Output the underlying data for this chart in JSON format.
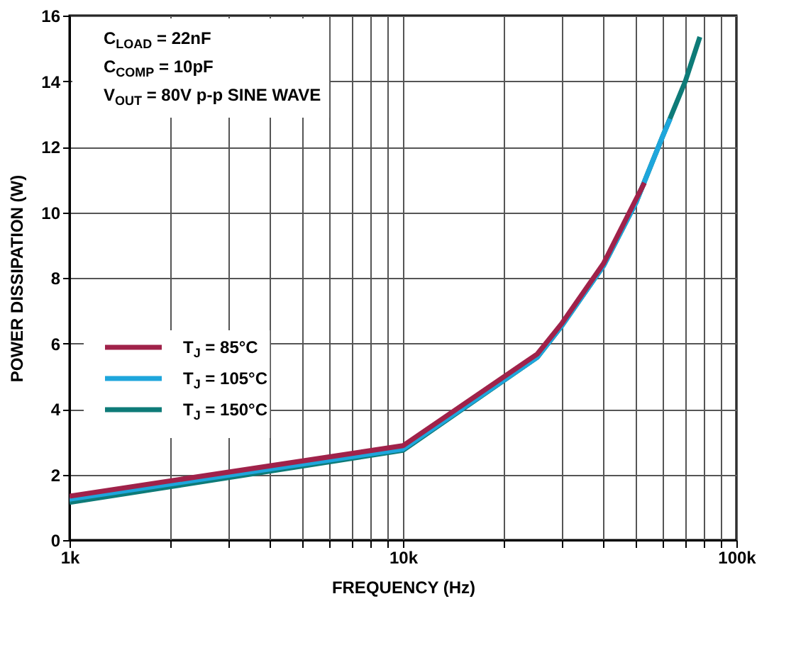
{
  "chart_data": {
    "type": "line",
    "xlabel": "FREQUENCY (Hz)",
    "ylabel": "POWER DISSIPATION (W)",
    "log": "x",
    "grid": true,
    "legend": "left",
    "marker": "none",
    "line_style": "solid",
    "xlim": [
      1000,
      100000
    ],
    "xticks": [
      {
        "value": 1000,
        "label": "1k"
      },
      {
        "value": 2000,
        "label": null
      },
      {
        "value": 3000,
        "label": null
      },
      {
        "value": 4000,
        "label": null
      },
      {
        "value": 5000,
        "label": null
      },
      {
        "value": 6000,
        "label": null
      },
      {
        "value": 7000,
        "label": null
      },
      {
        "value": 8000,
        "label": null
      },
      {
        "value": 9000,
        "label": null
      },
      {
        "value": 10000,
        "label": "10k"
      },
      {
        "value": 20000,
        "label": null
      },
      {
        "value": 30000,
        "label": null
      },
      {
        "value": 40000,
        "label": null
      },
      {
        "value": 50000,
        "label": null
      },
      {
        "value": 60000,
        "label": null
      },
      {
        "value": 70000,
        "label": null
      },
      {
        "value": 80000,
        "label": null
      },
      {
        "value": 90000,
        "label": null
      },
      {
        "value": 100000,
        "label": "100k"
      }
    ],
    "ylim": [
      0,
      16
    ],
    "yticks": [
      0,
      2,
      4,
      6,
      8,
      10,
      12,
      14,
      16
    ],
    "annotations": [
      "C$_{LOAD}$ = 22nF",
      "C$_{COMP}$ = 10pF",
      "V$_{OUT}$ = 80V p-p SINE WAVE"
    ],
    "series": [
      {
        "name": "T$_{J}$ = 85°C",
        "color": "#a0224a",
        "x": [
          1000,
          10000,
          25300,
          30000,
          40000,
          50000,
          53000
        ],
        "values": [
          1.34,
          2.88,
          5.68,
          6.62,
          8.45,
          10.4,
          10.9
        ]
      },
      {
        "name": "T$_{J}$ = 105°C",
        "color": "#1ea6dc",
        "x": [
          1000,
          10000,
          25300,
          30000,
          40000,
          50000,
          60000,
          63300
        ],
        "values": [
          1.25,
          2.78,
          5.58,
          6.55,
          8.38,
          10.3,
          12.3,
          12.85
        ]
      },
      {
        "name": "T$_{J}$ = 150°C",
        "color": "#0e7b78",
        "x": [
          1000,
          10000,
          25300,
          30000,
          40000,
          50000,
          60000,
          70300,
          77700
        ],
        "values": [
          1.15,
          2.74,
          5.58,
          6.55,
          8.38,
          10.3,
          12.3,
          14.0,
          15.35
        ]
      }
    ]
  }
}
